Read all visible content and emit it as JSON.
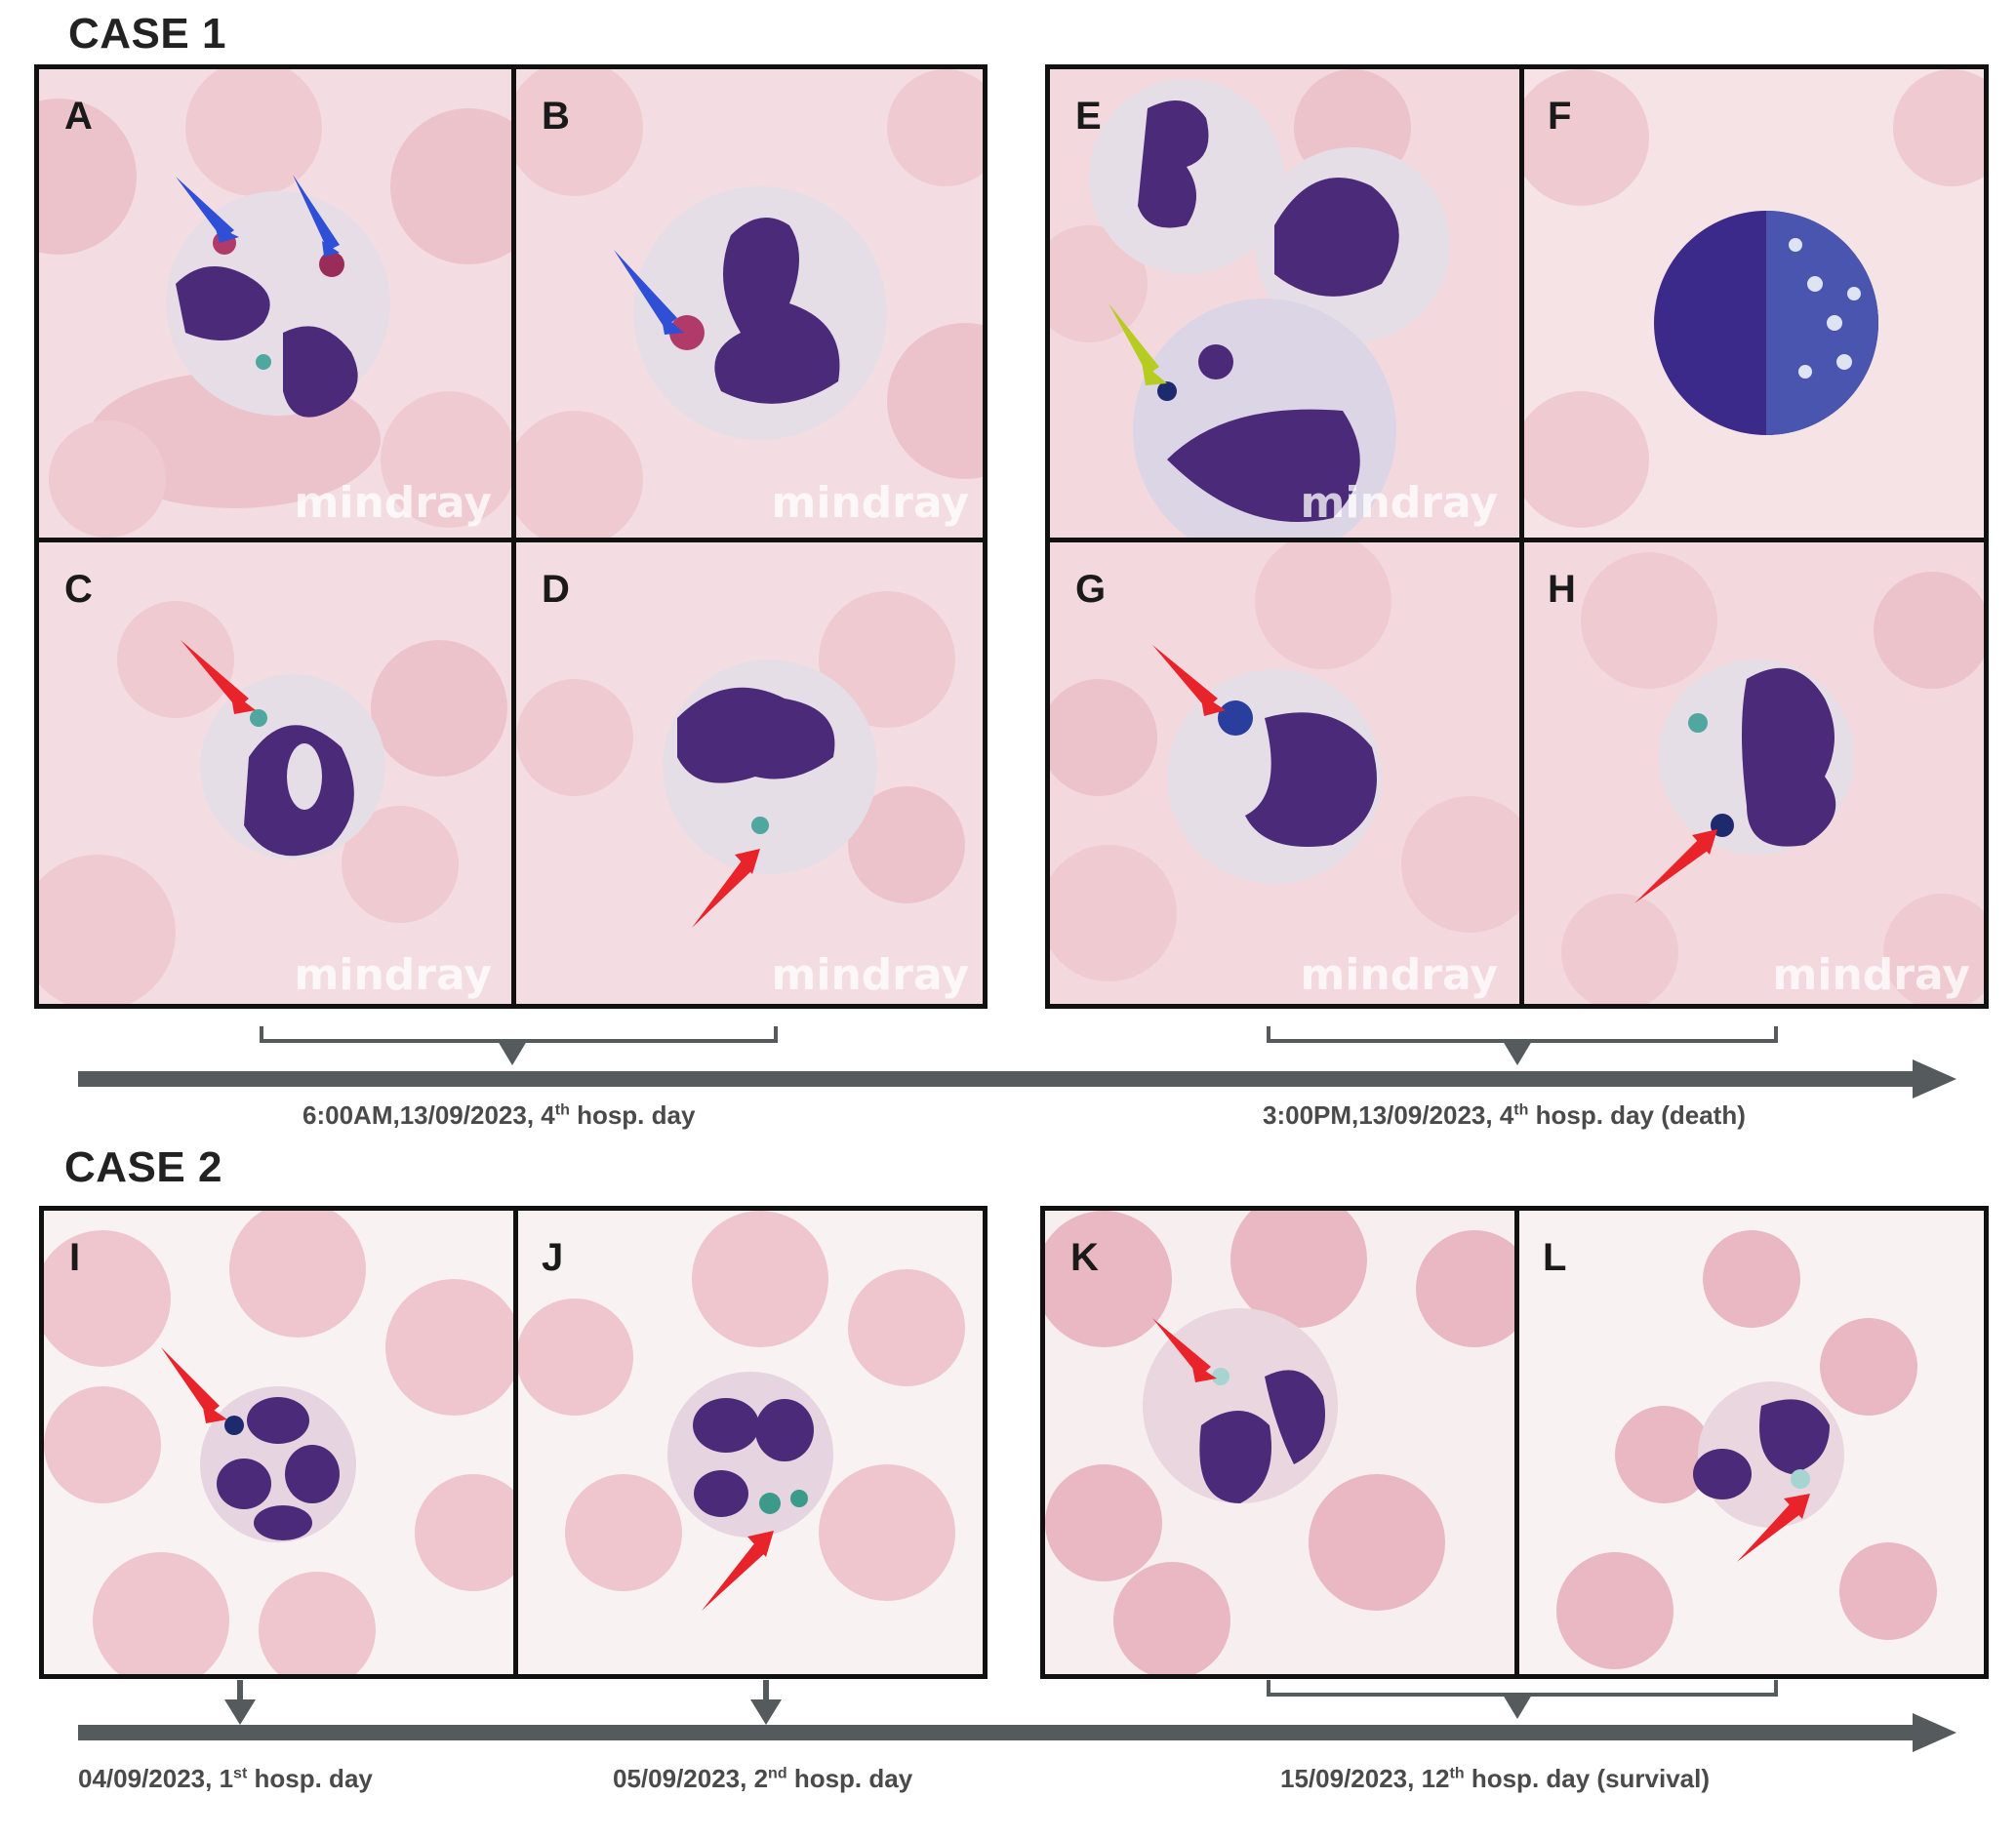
{
  "case1": {
    "title": "CASE 1",
    "panels": [
      "A",
      "B",
      "C",
      "D",
      "E",
      "F",
      "G",
      "H"
    ],
    "watermark": "mindray",
    "timeline": [
      {
        "date": "6:00AM,13/09/2023, 4",
        "sup": "th",
        "rest": " hosp. day"
      },
      {
        "date": "3:00PM,13/09/2023, 4",
        "sup": "th",
        "rest": " hosp. day (death)"
      }
    ]
  },
  "case2": {
    "title": "CASE 2",
    "panels": [
      "I",
      "J",
      "K",
      "L"
    ],
    "timeline": [
      {
        "date": "04/09/2023, 1",
        "sup": "st",
        "rest": " hosp. day"
      },
      {
        "date": "05/09/2023, 2",
        "sup": "nd",
        "rest": " hosp. day"
      },
      {
        "date": "15/09/2023, 12",
        "sup": "th",
        "rest": " hosp. day (survival)"
      }
    ]
  },
  "colors": {
    "background_pink": "#f3dfe3",
    "rbc": "#e8b6c0",
    "nucleus": "#4b2a7a",
    "blue_arrow": "#2f4fd6",
    "red_arrow": "#e8232a",
    "yellow_arrow": "#b6cc22",
    "timeline_gray": "#555a5c"
  }
}
